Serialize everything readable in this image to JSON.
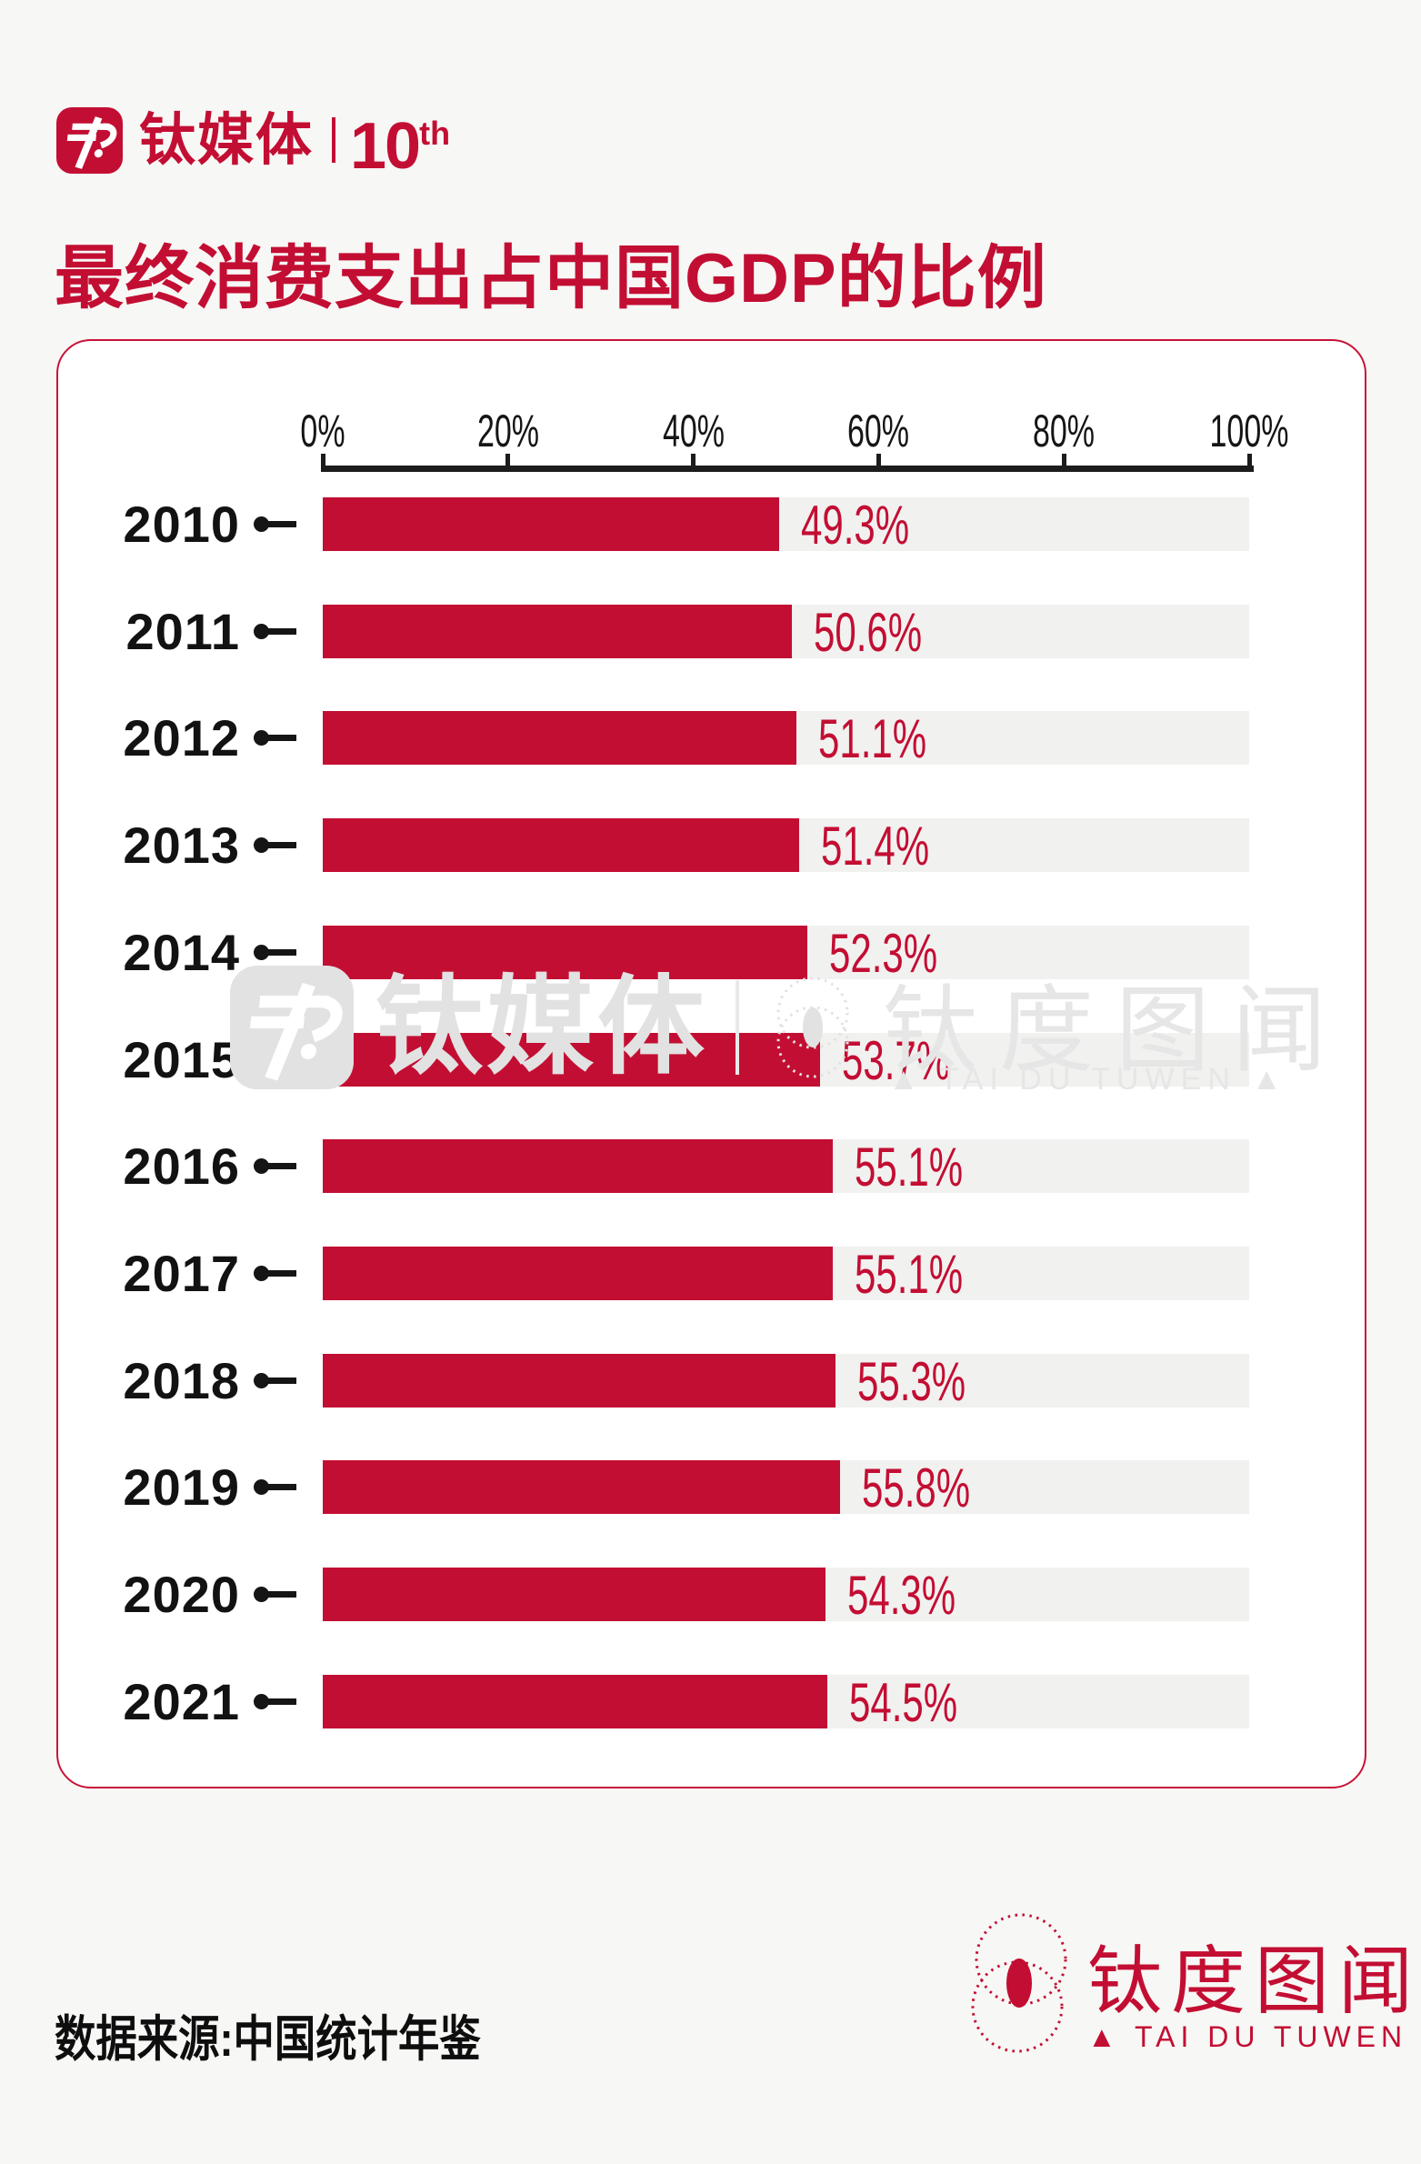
{
  "header": {
    "brand_name": "钛媒体",
    "anniversary_number": "10",
    "anniversary_suffix": "th"
  },
  "title": "最终消费支出占中国GDP的比例",
  "chart_data": {
    "type": "bar",
    "orientation": "horizontal",
    "title": "最终消费支出占中国GDP的比例",
    "categories": [
      "2010",
      "2011",
      "2012",
      "2013",
      "2014",
      "2015",
      "2016",
      "2017",
      "2018",
      "2019",
      "2020",
      "2021"
    ],
    "values": [
      49.3,
      50.6,
      51.1,
      51.4,
      52.3,
      53.7,
      55.1,
      55.1,
      55.3,
      55.8,
      54.3,
      54.5
    ],
    "value_labels": [
      "49.3%",
      "50.6%",
      "51.1%",
      "51.4%",
      "52.3%",
      "53.7%",
      "55.1%",
      "55.1%",
      "55.3%",
      "55.8%",
      "54.3%",
      "54.5%"
    ],
    "x_ticks": [
      "0%",
      "20%",
      "40%",
      "60%",
      "80%",
      "100%"
    ],
    "xlim": [
      0,
      100
    ],
    "grid": false,
    "legend": null,
    "bar_color": "#C30E33",
    "track_color": "#F1F1F0",
    "axis_color": "#1C1C1C"
  },
  "watermark": {
    "brand_name": "钛媒体",
    "product_name": "钛度图闻",
    "tagline": "▲ TAI DU TUWEN ▲"
  },
  "footer": {
    "source": "数据来源:中国统计年鉴",
    "logo_name": "钛度图闻",
    "logo_tagline": "▲ TAI DU TUWEN ▲"
  },
  "colors": {
    "accent_red": "#C30E33",
    "card_border": "#C9123A",
    "page_background": "#F7F7F5",
    "watermark_gray": "#E2E2E2"
  }
}
